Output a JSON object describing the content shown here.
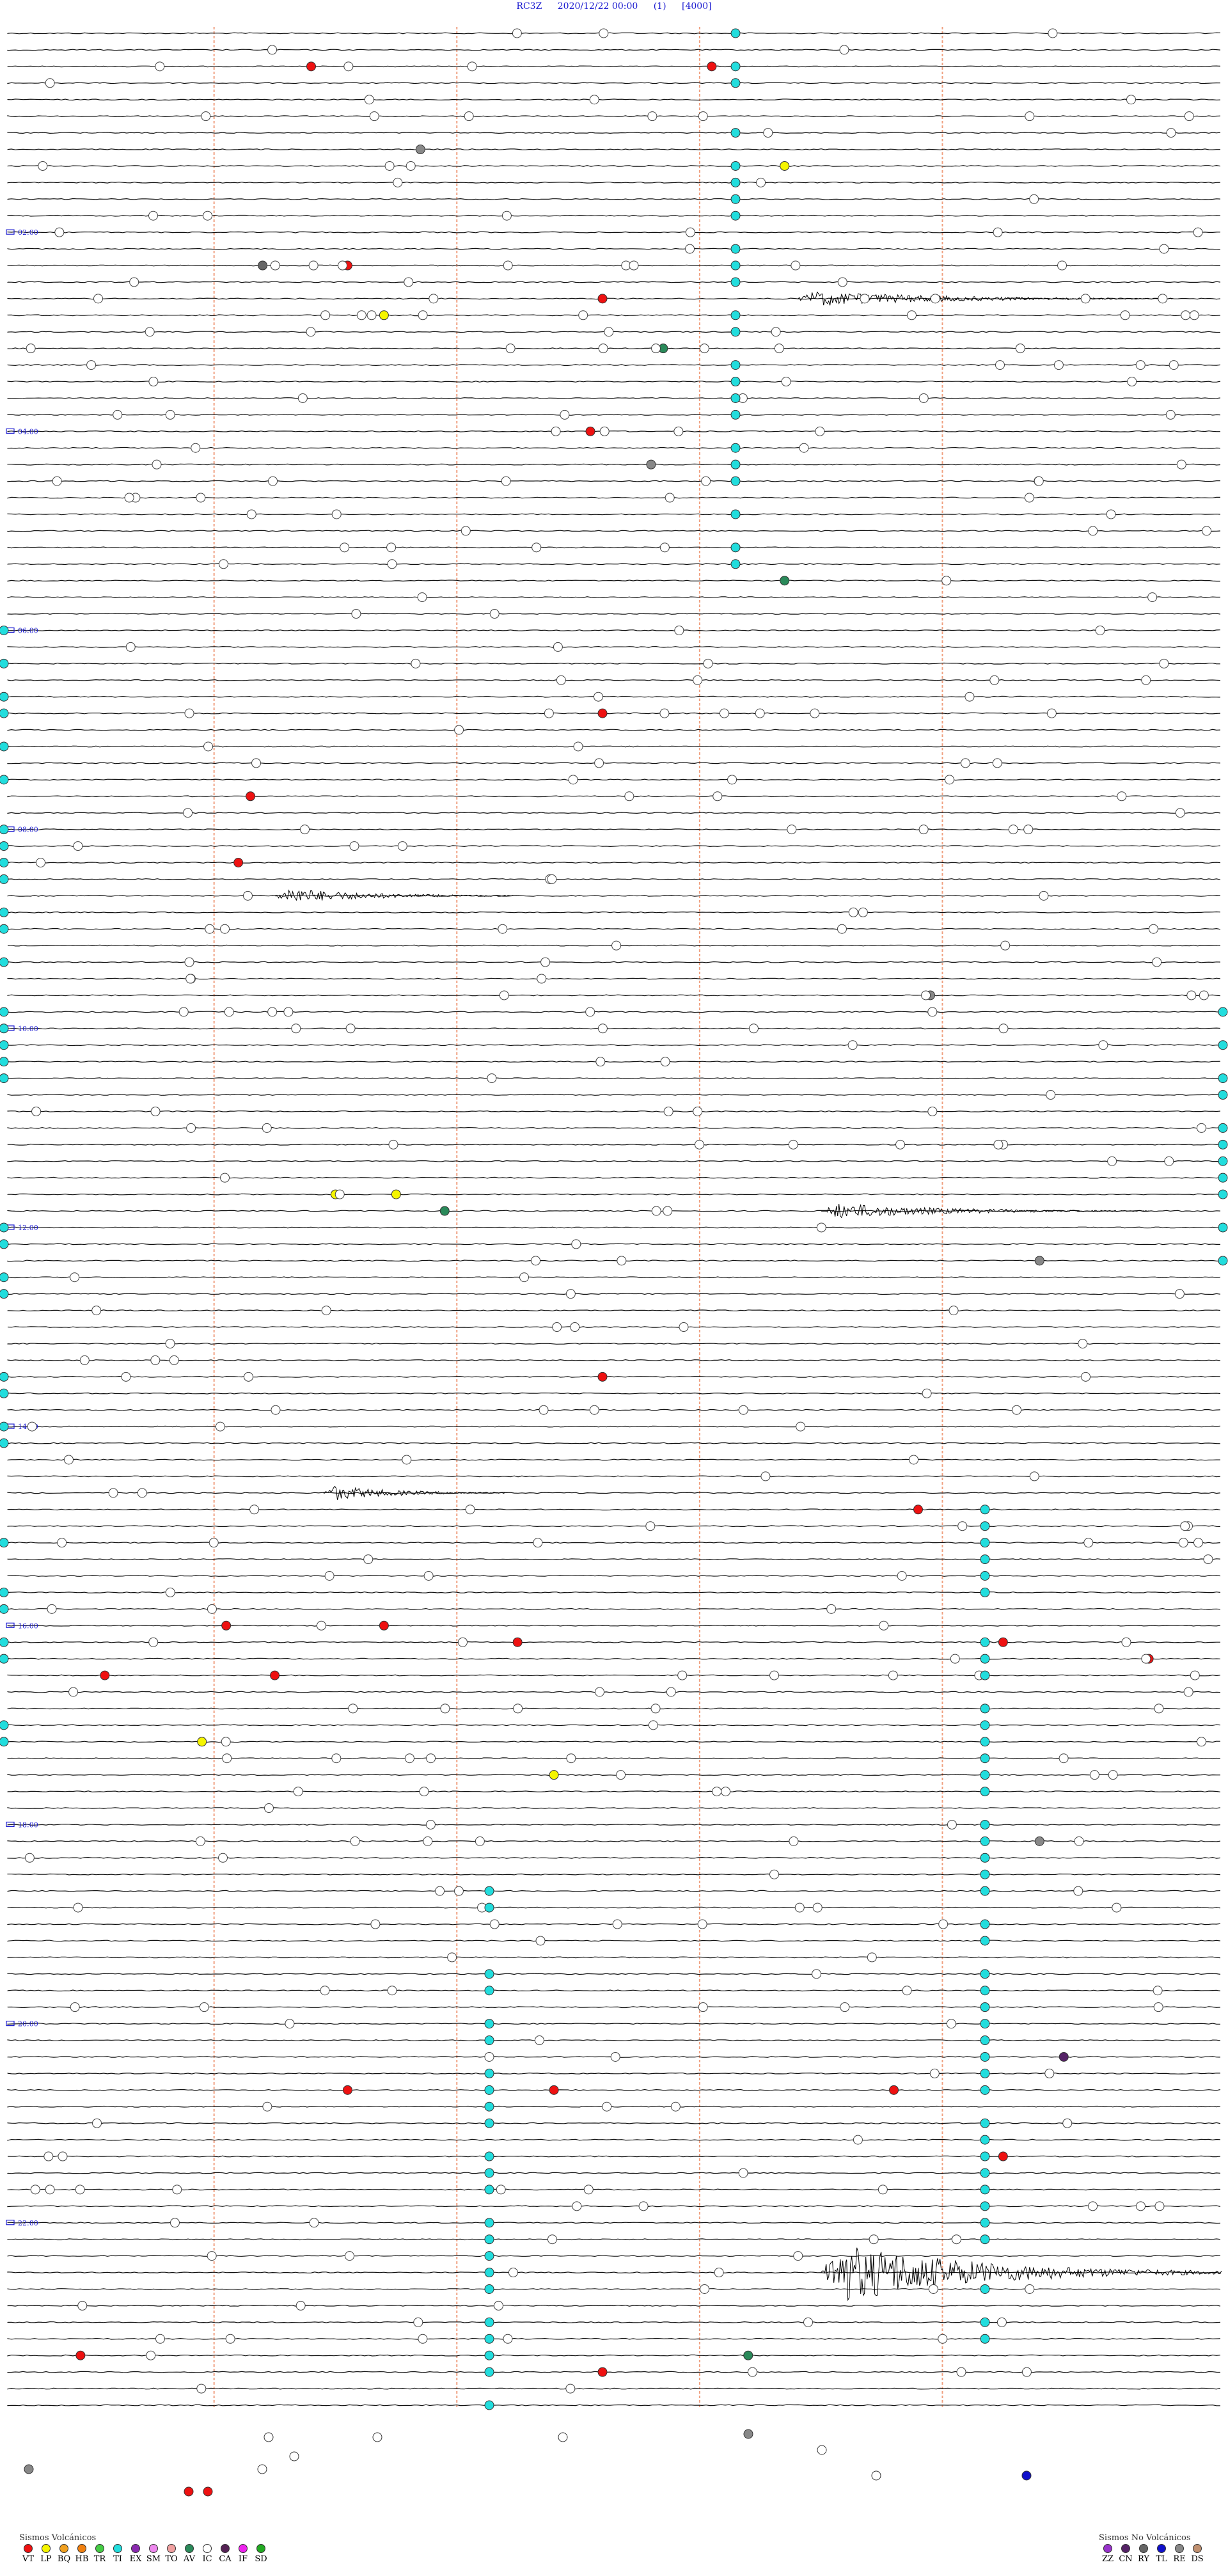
{
  "header": {
    "station": "RC3Z",
    "datetime": "2020/12/22 00:00",
    "page": "(1)",
    "scale": "[4000]"
  },
  "chart_data": {
    "type": "helicorder",
    "title": "RC3Z   2020/12/22 00:00   (1)   [4000]",
    "time_labels": [
      "02:00",
      "04:00",
      "06:00",
      "08:00",
      "10:00",
      "12:00",
      "14:00",
      "16:00",
      "18:00",
      "20:00",
      "22:00"
    ],
    "trace_count": 144,
    "minutes_per_trace": 10,
    "grid": true,
    "event_markers": [
      {
        "hour": 0.3,
        "minute": 2.5,
        "type": "VT"
      },
      {
        "hour": 0.3,
        "minute": 5.8,
        "type": "VT"
      },
      {
        "hour": 1.2,
        "minute": 3.4,
        "type": "RE"
      },
      {
        "hour": 1.3,
        "minute": 6.4,
        "type": "LP"
      },
      {
        "hour": 2.3,
        "minute": 2.1,
        "type": "RY"
      },
      {
        "hour": 2.4,
        "minute": 2.8,
        "type": "VT"
      },
      {
        "hour": 2.6,
        "minute": 4.9,
        "type": "VT"
      },
      {
        "hour": 2.9,
        "minute": 3.1,
        "type": "LP"
      },
      {
        "hour": 3.2,
        "minute": 5.4,
        "type": "AV"
      },
      {
        "hour": 4.0,
        "minute": 4.8,
        "type": "VT"
      },
      {
        "hour": 4.4,
        "minute": 5.3,
        "type": "RE"
      },
      {
        "hour": 5.5,
        "minute": 6.4,
        "type": "AV"
      },
      {
        "hour": 6.8,
        "minute": 4.9,
        "type": "VT"
      },
      {
        "hour": 7.7,
        "minute": 2.0,
        "type": "VT"
      },
      {
        "hour": 8.3,
        "minute": 1.9,
        "type": "VT"
      },
      {
        "hour": 9.6,
        "minute": 7.6,
        "type": "RE"
      },
      {
        "hour": 11.6,
        "minute": 2.7,
        "type": "LP"
      },
      {
        "hour": 11.6,
        "minute": 3.2,
        "type": "LP"
      },
      {
        "hour": 11.9,
        "minute": 3.6,
        "type": "AV"
      },
      {
        "hour": 12.3,
        "minute": 8.5,
        "type": "RE"
      },
      {
        "hour": 13.5,
        "minute": 4.9,
        "type": "VT"
      },
      {
        "hour": 14.9,
        "minute": 7.5,
        "type": "VT"
      },
      {
        "hour": 16.0,
        "minute": 1.8,
        "type": "VT"
      },
      {
        "hour": 16.0,
        "minute": 3.1,
        "type": "VT"
      },
      {
        "hour": 16.2,
        "minute": 4.2,
        "type": "VT"
      },
      {
        "hour": 16.2,
        "minute": 8.2,
        "type": "VT"
      },
      {
        "hour": 16.4,
        "minute": 9.4,
        "type": "VT"
      },
      {
        "hour": 16.5,
        "minute": 0.8,
        "type": "VT"
      },
      {
        "hour": 16.5,
        "minute": 2.2,
        "type": "VT"
      },
      {
        "hour": 17.2,
        "minute": 1.6,
        "type": "LP"
      },
      {
        "hour": 17.5,
        "minute": 4.5,
        "type": "LP"
      },
      {
        "hour": 18.2,
        "minute": 8.5,
        "type": "RE"
      },
      {
        "hour": 20.3,
        "minute": 8.7,
        "type": "CN"
      },
      {
        "hour": 20.6,
        "minute": 2.8,
        "type": "VT"
      },
      {
        "hour": 20.6,
        "minute": 4.5,
        "type": "VT"
      },
      {
        "hour": 20.6,
        "minute": 7.3,
        "type": "VT"
      },
      {
        "hour": 21.3,
        "minute": 8.2,
        "type": "VT"
      },
      {
        "hour": 23.3,
        "minute": 0.6,
        "type": "VT"
      },
      {
        "hour": 23.4,
        "minute": 6.1,
        "type": "AV"
      },
      {
        "hour": 23.5,
        "minute": 4.9,
        "type": "VT"
      }
    ],
    "signals": [
      {
        "hour": 2.6,
        "start_minute": 6.5,
        "end_minute": 9.6,
        "label": "IC"
      },
      {
        "hour": 8.6,
        "start_minute": 2.2,
        "end_minute": 4.2,
        "label": "IC"
      },
      {
        "hour": 11.9,
        "start_minute": 6.7,
        "end_minute": 9.4,
        "label": "IC"
      },
      {
        "hour": 14.6,
        "start_minute": 2.6,
        "end_minute": 4.1,
        "label": "IC"
      },
      {
        "hour": 22.5,
        "start_minute": 6.7,
        "end_minute": 10.0,
        "label": "IC"
      }
    ]
  },
  "legend_volcanic": {
    "title": "Sismos Volcánicos",
    "items": [
      {
        "code": "VT",
        "color": "#ee1111"
      },
      {
        "code": "LP",
        "color": "#f5f500"
      },
      {
        "code": "BQ",
        "color": "#f0a020"
      },
      {
        "code": "HB",
        "color": "#f08010"
      },
      {
        "code": "TR",
        "color": "#44cc44"
      },
      {
        "code": "TI",
        "color": "#22dddd"
      },
      {
        "code": "EX",
        "color": "#8a2ab0"
      },
      {
        "code": "SM",
        "color": "#ee88ee"
      },
      {
        "code": "TO",
        "color": "#f0a0a0"
      },
      {
        "code": "AV",
        "color": "#2a8a5a"
      },
      {
        "code": "IC",
        "color": "#ffffff"
      },
      {
        "code": "CA",
        "color": "#552255"
      },
      {
        "code": "IF",
        "color": "#ee22ee"
      },
      {
        "code": "SD",
        "color": "#22aa22"
      }
    ]
  },
  "legend_nonvolcanic": {
    "title": "Sismos No Volcánicos",
    "items": [
      {
        "code": "ZZ",
        "color": "#9933cc"
      },
      {
        "code": "CN",
        "color": "#552266"
      },
      {
        "code": "RY",
        "color": "#666666"
      },
      {
        "code": "TL",
        "color": "#1010cc"
      },
      {
        "code": "RE",
        "color": "#888888"
      },
      {
        "code": "DS",
        "color": "#c09070"
      }
    ]
  }
}
